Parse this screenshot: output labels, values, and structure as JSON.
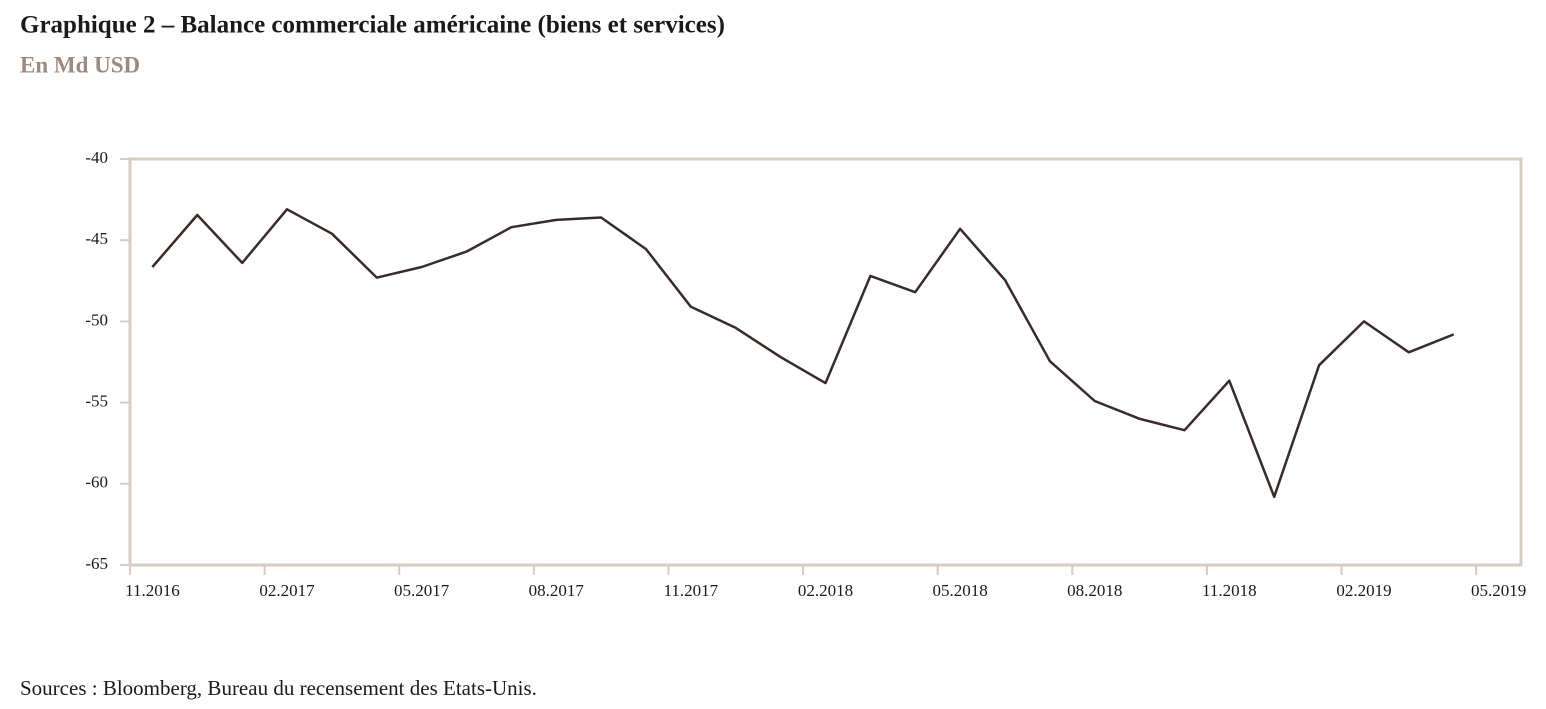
{
  "chart_data": {
    "type": "line",
    "title": "Graphique 2 – Balance commerciale américaine (biens et services)",
    "subtitle": "En Md USD",
    "source": "Sources : Bloomberg, Bureau du recensement des Etats-Unis.",
    "categories": [
      "11.2016",
      null,
      null,
      "02.2017",
      null,
      null,
      "05.2017",
      null,
      null,
      "08.2017",
      null,
      null,
      "11.2017",
      null,
      null,
      "02.2018",
      null,
      null,
      "05.2018",
      null,
      null,
      "08.2018",
      null,
      null,
      "11.2018",
      null,
      null,
      "02.2019",
      null,
      null,
      "05.2019"
    ],
    "series": [
      {
        "name": "Balance commerciale",
        "color": "#3a2a2a",
        "values": [
          -46.65,
          -43.45,
          -46.4,
          -43.1,
          -44.6,
          -47.3,
          -46.65,
          -45.7,
          -44.2,
          -43.75,
          -43.6,
          -45.55,
          -49.1,
          -50.4,
          -52.2,
          -53.8,
          -47.2,
          -48.2,
          -44.3,
          -47.45,
          -52.45,
          -54.9,
          -56.0,
          -56.7,
          -53.65,
          -60.8,
          -52.7,
          -50.0,
          -51.9,
          -50.8,
          null
        ]
      }
    ],
    "ylim": [
      -65,
      -40
    ],
    "yticks": [
      -40,
      -45,
      -50,
      -55,
      -60,
      -65
    ],
    "grid": false,
    "frame_color": "#d8cbc0"
  }
}
